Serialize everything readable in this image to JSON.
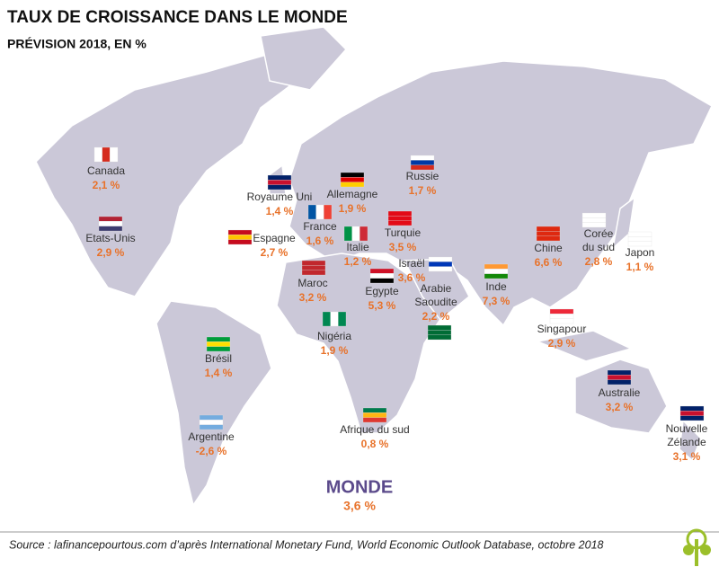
{
  "header": {
    "title": "TAUX DE CROISSANCE DANS LE MONDE",
    "subtitle": "PRÉVISION 2018, EN %"
  },
  "countries": [
    {
      "name": [
        "Canada"
      ],
      "value": "2,1 %"
    },
    {
      "name": [
        "Royaume Uni"
      ],
      "value": "1,4 %"
    },
    {
      "name": [
        "Allemagne"
      ],
      "value": "1,9 %"
    },
    {
      "name": [
        "Russie"
      ],
      "value": "1,7 %"
    },
    {
      "name": [
        "France"
      ],
      "value": "1,6 %"
    },
    {
      "name": [
        "Etats-Unis"
      ],
      "value": "2,9 %"
    },
    {
      "name": [
        "Espagne"
      ],
      "value": "2,7 %"
    },
    {
      "name": [
        "Italie"
      ],
      "value": "1,2 %"
    },
    {
      "name": [
        "Turquie"
      ],
      "value": "3,5 %"
    },
    {
      "name": [
        "Chine"
      ],
      "value": "6,6 %"
    },
    {
      "name": [
        "Corée",
        "du sud"
      ],
      "value": "2,8 %"
    },
    {
      "name": [
        "Japon"
      ],
      "value": "1,1 %"
    },
    {
      "name": [
        "Maroc"
      ],
      "value": "3,2 %"
    },
    {
      "name": [
        "Israël"
      ],
      "value": "3,6 %"
    },
    {
      "name": [
        "Egypte"
      ],
      "value": "5,3 %"
    },
    {
      "name": [
        "Arabie",
        "Saoudite"
      ],
      "value": "2,2 %"
    },
    {
      "name": [
        "Inde"
      ],
      "value": "7,3 %"
    },
    {
      "name": [
        "Nigéria"
      ],
      "value": "1,9 %"
    },
    {
      "name": [
        "Singapour"
      ],
      "value": "2,9 %"
    },
    {
      "name": [
        "Brésil"
      ],
      "value": "1,4 %"
    },
    {
      "name": [
        "Australie"
      ],
      "value": "3,2 %"
    },
    {
      "name": [
        "Argentine"
      ],
      "value": "-2,6 %"
    },
    {
      "name": [
        "Afrique du sud"
      ],
      "value": "0,8 %"
    },
    {
      "name": [
        "Nouvelle",
        "Zélande"
      ],
      "value": "3,1 %"
    }
  ],
  "world": {
    "label": "MONDE",
    "value": "3,6 %"
  },
  "source": "Source : lafinancepourtous.com d’après International Monetary Fund, World Economic Outlook Database, octobre 2018"
}
